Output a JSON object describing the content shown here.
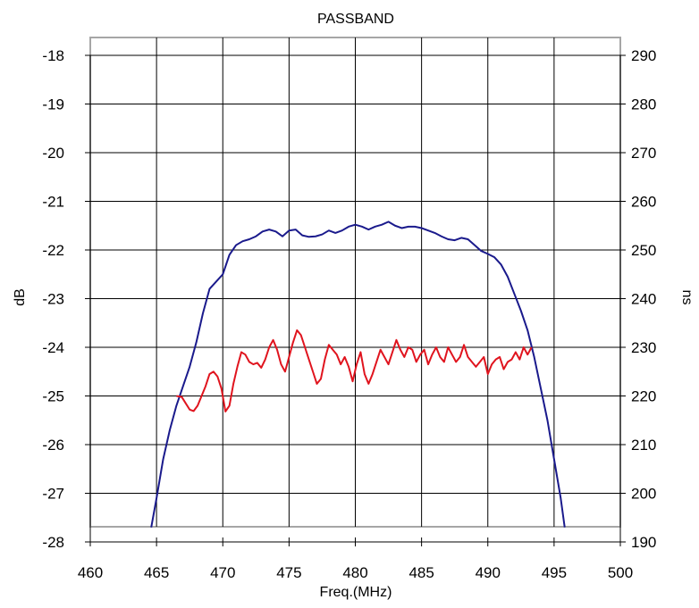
{
  "chart_data": {
    "type": "line",
    "title": "PASSBAND",
    "xlabel": "Freq.(MHz)",
    "ylabel": "dB",
    "y2label": "ns",
    "xlim": [
      460,
      500
    ],
    "ylim": [
      -28,
      -18
    ],
    "y2lim": [
      190,
      290
    ],
    "x_ticks": [
      "460",
      "465",
      "470",
      "475",
      "480",
      "485",
      "490",
      "495",
      "500"
    ],
    "y_ticks": [
      "-18",
      "-19",
      "-20",
      "-21",
      "-22",
      "-23",
      "-24",
      "-25",
      "-26",
      "-27",
      "-28"
    ],
    "y2_ticks": [
      "290",
      "280",
      "270",
      "260",
      "250",
      "240",
      "230",
      "220",
      "210",
      "200",
      "190"
    ],
    "grid": true,
    "legend": "none",
    "series": [
      {
        "axis": "left",
        "color": "#1a1a8c",
        "points": [
          [
            464.6,
            -27.7
          ],
          [
            465.0,
            -27.1
          ],
          [
            465.5,
            -26.3
          ],
          [
            466.0,
            -25.7
          ],
          [
            466.5,
            -25.2
          ],
          [
            467.0,
            -24.8
          ],
          [
            467.5,
            -24.4
          ],
          [
            468.0,
            -23.9
          ],
          [
            468.5,
            -23.3
          ],
          [
            469.0,
            -22.8
          ],
          [
            469.5,
            -22.65
          ],
          [
            470.0,
            -22.5
          ],
          [
            470.5,
            -22.1
          ],
          [
            471.0,
            -21.9
          ],
          [
            471.5,
            -21.82
          ],
          [
            472.0,
            -21.78
          ],
          [
            472.5,
            -21.72
          ],
          [
            473.0,
            -21.62
          ],
          [
            473.5,
            -21.58
          ],
          [
            474.0,
            -21.62
          ],
          [
            474.5,
            -21.72
          ],
          [
            475.0,
            -21.6
          ],
          [
            475.5,
            -21.58
          ],
          [
            476.0,
            -21.7
          ],
          [
            476.5,
            -21.73
          ],
          [
            477.0,
            -21.72
          ],
          [
            477.5,
            -21.68
          ],
          [
            478.0,
            -21.6
          ],
          [
            478.5,
            -21.65
          ],
          [
            479.0,
            -21.6
          ],
          [
            479.5,
            -21.52
          ],
          [
            480.0,
            -21.48
          ],
          [
            480.5,
            -21.52
          ],
          [
            481.0,
            -21.58
          ],
          [
            481.5,
            -21.52
          ],
          [
            482.0,
            -21.48
          ],
          [
            482.5,
            -21.42
          ],
          [
            483.0,
            -21.5
          ],
          [
            483.5,
            -21.55
          ],
          [
            484.0,
            -21.52
          ],
          [
            484.5,
            -21.52
          ],
          [
            485.0,
            -21.55
          ],
          [
            485.5,
            -21.6
          ],
          [
            486.0,
            -21.65
          ],
          [
            486.5,
            -21.72
          ],
          [
            487.0,
            -21.78
          ],
          [
            487.5,
            -21.8
          ],
          [
            488.0,
            -21.75
          ],
          [
            488.5,
            -21.78
          ],
          [
            489.0,
            -21.9
          ],
          [
            489.5,
            -22.02
          ],
          [
            490.0,
            -22.08
          ],
          [
            490.5,
            -22.15
          ],
          [
            491.0,
            -22.3
          ],
          [
            491.5,
            -22.55
          ],
          [
            492.0,
            -22.9
          ],
          [
            492.5,
            -23.25
          ],
          [
            493.0,
            -23.65
          ],
          [
            493.5,
            -24.2
          ],
          [
            494.0,
            -24.85
          ],
          [
            494.5,
            -25.5
          ],
          [
            495.0,
            -26.3
          ],
          [
            495.5,
            -27.1
          ],
          [
            495.8,
            -27.7
          ]
        ]
      },
      {
        "axis": "right",
        "color": "#e0141e",
        "points": [
          [
            466.5,
            220.0
          ],
          [
            466.9,
            219.8
          ],
          [
            467.2,
            218.5
          ],
          [
            467.5,
            217.2
          ],
          [
            467.8,
            216.9
          ],
          [
            468.1,
            218.0
          ],
          [
            468.4,
            220.0
          ],
          [
            468.7,
            222.0
          ],
          [
            469.0,
            224.5
          ],
          [
            469.3,
            225.0
          ],
          [
            469.6,
            224.0
          ],
          [
            469.9,
            221.5
          ],
          [
            470.2,
            216.8
          ],
          [
            470.5,
            218.0
          ],
          [
            470.8,
            222.5
          ],
          [
            471.1,
            226.0
          ],
          [
            471.4,
            229.0
          ],
          [
            471.7,
            228.5
          ],
          [
            472.0,
            227.0
          ],
          [
            472.3,
            226.5
          ],
          [
            472.6,
            226.8
          ],
          [
            472.9,
            225.8
          ],
          [
            473.2,
            227.5
          ],
          [
            473.5,
            230.0
          ],
          [
            473.8,
            231.5
          ],
          [
            474.1,
            229.5
          ],
          [
            474.4,
            226.5
          ],
          [
            474.7,
            225.0
          ],
          [
            475.0,
            228.0
          ],
          [
            475.3,
            231.0
          ],
          [
            475.6,
            233.5
          ],
          [
            475.9,
            232.5
          ],
          [
            476.2,
            230.0
          ],
          [
            476.5,
            227.5
          ],
          [
            476.8,
            225.0
          ],
          [
            477.1,
            222.5
          ],
          [
            477.4,
            223.5
          ],
          [
            477.7,
            227.5
          ],
          [
            478.0,
            230.5
          ],
          [
            478.3,
            229.5
          ],
          [
            478.6,
            228.5
          ],
          [
            478.9,
            226.5
          ],
          [
            479.2,
            228.0
          ],
          [
            479.5,
            226.0
          ],
          [
            479.8,
            223.0
          ],
          [
            480.1,
            226.5
          ],
          [
            480.4,
            229.0
          ],
          [
            480.7,
            224.5
          ],
          [
            481.0,
            222.5
          ],
          [
            481.3,
            224.5
          ],
          [
            481.6,
            227.0
          ],
          [
            481.9,
            229.5
          ],
          [
            482.2,
            228.0
          ],
          [
            482.5,
            226.5
          ],
          [
            482.8,
            229.0
          ],
          [
            483.1,
            231.5
          ],
          [
            483.4,
            229.5
          ],
          [
            483.7,
            228.0
          ],
          [
            484.0,
            230.0
          ],
          [
            484.3,
            229.5
          ],
          [
            484.6,
            227.0
          ],
          [
            484.9,
            228.5
          ],
          [
            485.2,
            229.5
          ],
          [
            485.5,
            226.5
          ],
          [
            485.8,
            228.5
          ],
          [
            486.1,
            230.0
          ],
          [
            486.4,
            228.0
          ],
          [
            486.7,
            227.0
          ],
          [
            487.0,
            230.0
          ],
          [
            487.3,
            228.5
          ],
          [
            487.6,
            227.0
          ],
          [
            487.9,
            228.0
          ],
          [
            488.2,
            230.5
          ],
          [
            488.5,
            228.0
          ],
          [
            488.8,
            227.0
          ],
          [
            489.1,
            226.0
          ],
          [
            489.4,
            227.0
          ],
          [
            489.7,
            228.0
          ],
          [
            490.0,
            224.5
          ],
          [
            490.3,
            226.5
          ],
          [
            490.6,
            227.5
          ],
          [
            490.9,
            228.0
          ],
          [
            491.2,
            225.5
          ],
          [
            491.5,
            227.0
          ],
          [
            491.8,
            227.5
          ],
          [
            492.1,
            229.0
          ],
          [
            492.4,
            227.5
          ],
          [
            492.7,
            230.0
          ],
          [
            493.0,
            228.5
          ],
          [
            493.3,
            230.0
          ]
        ]
      }
    ]
  }
}
